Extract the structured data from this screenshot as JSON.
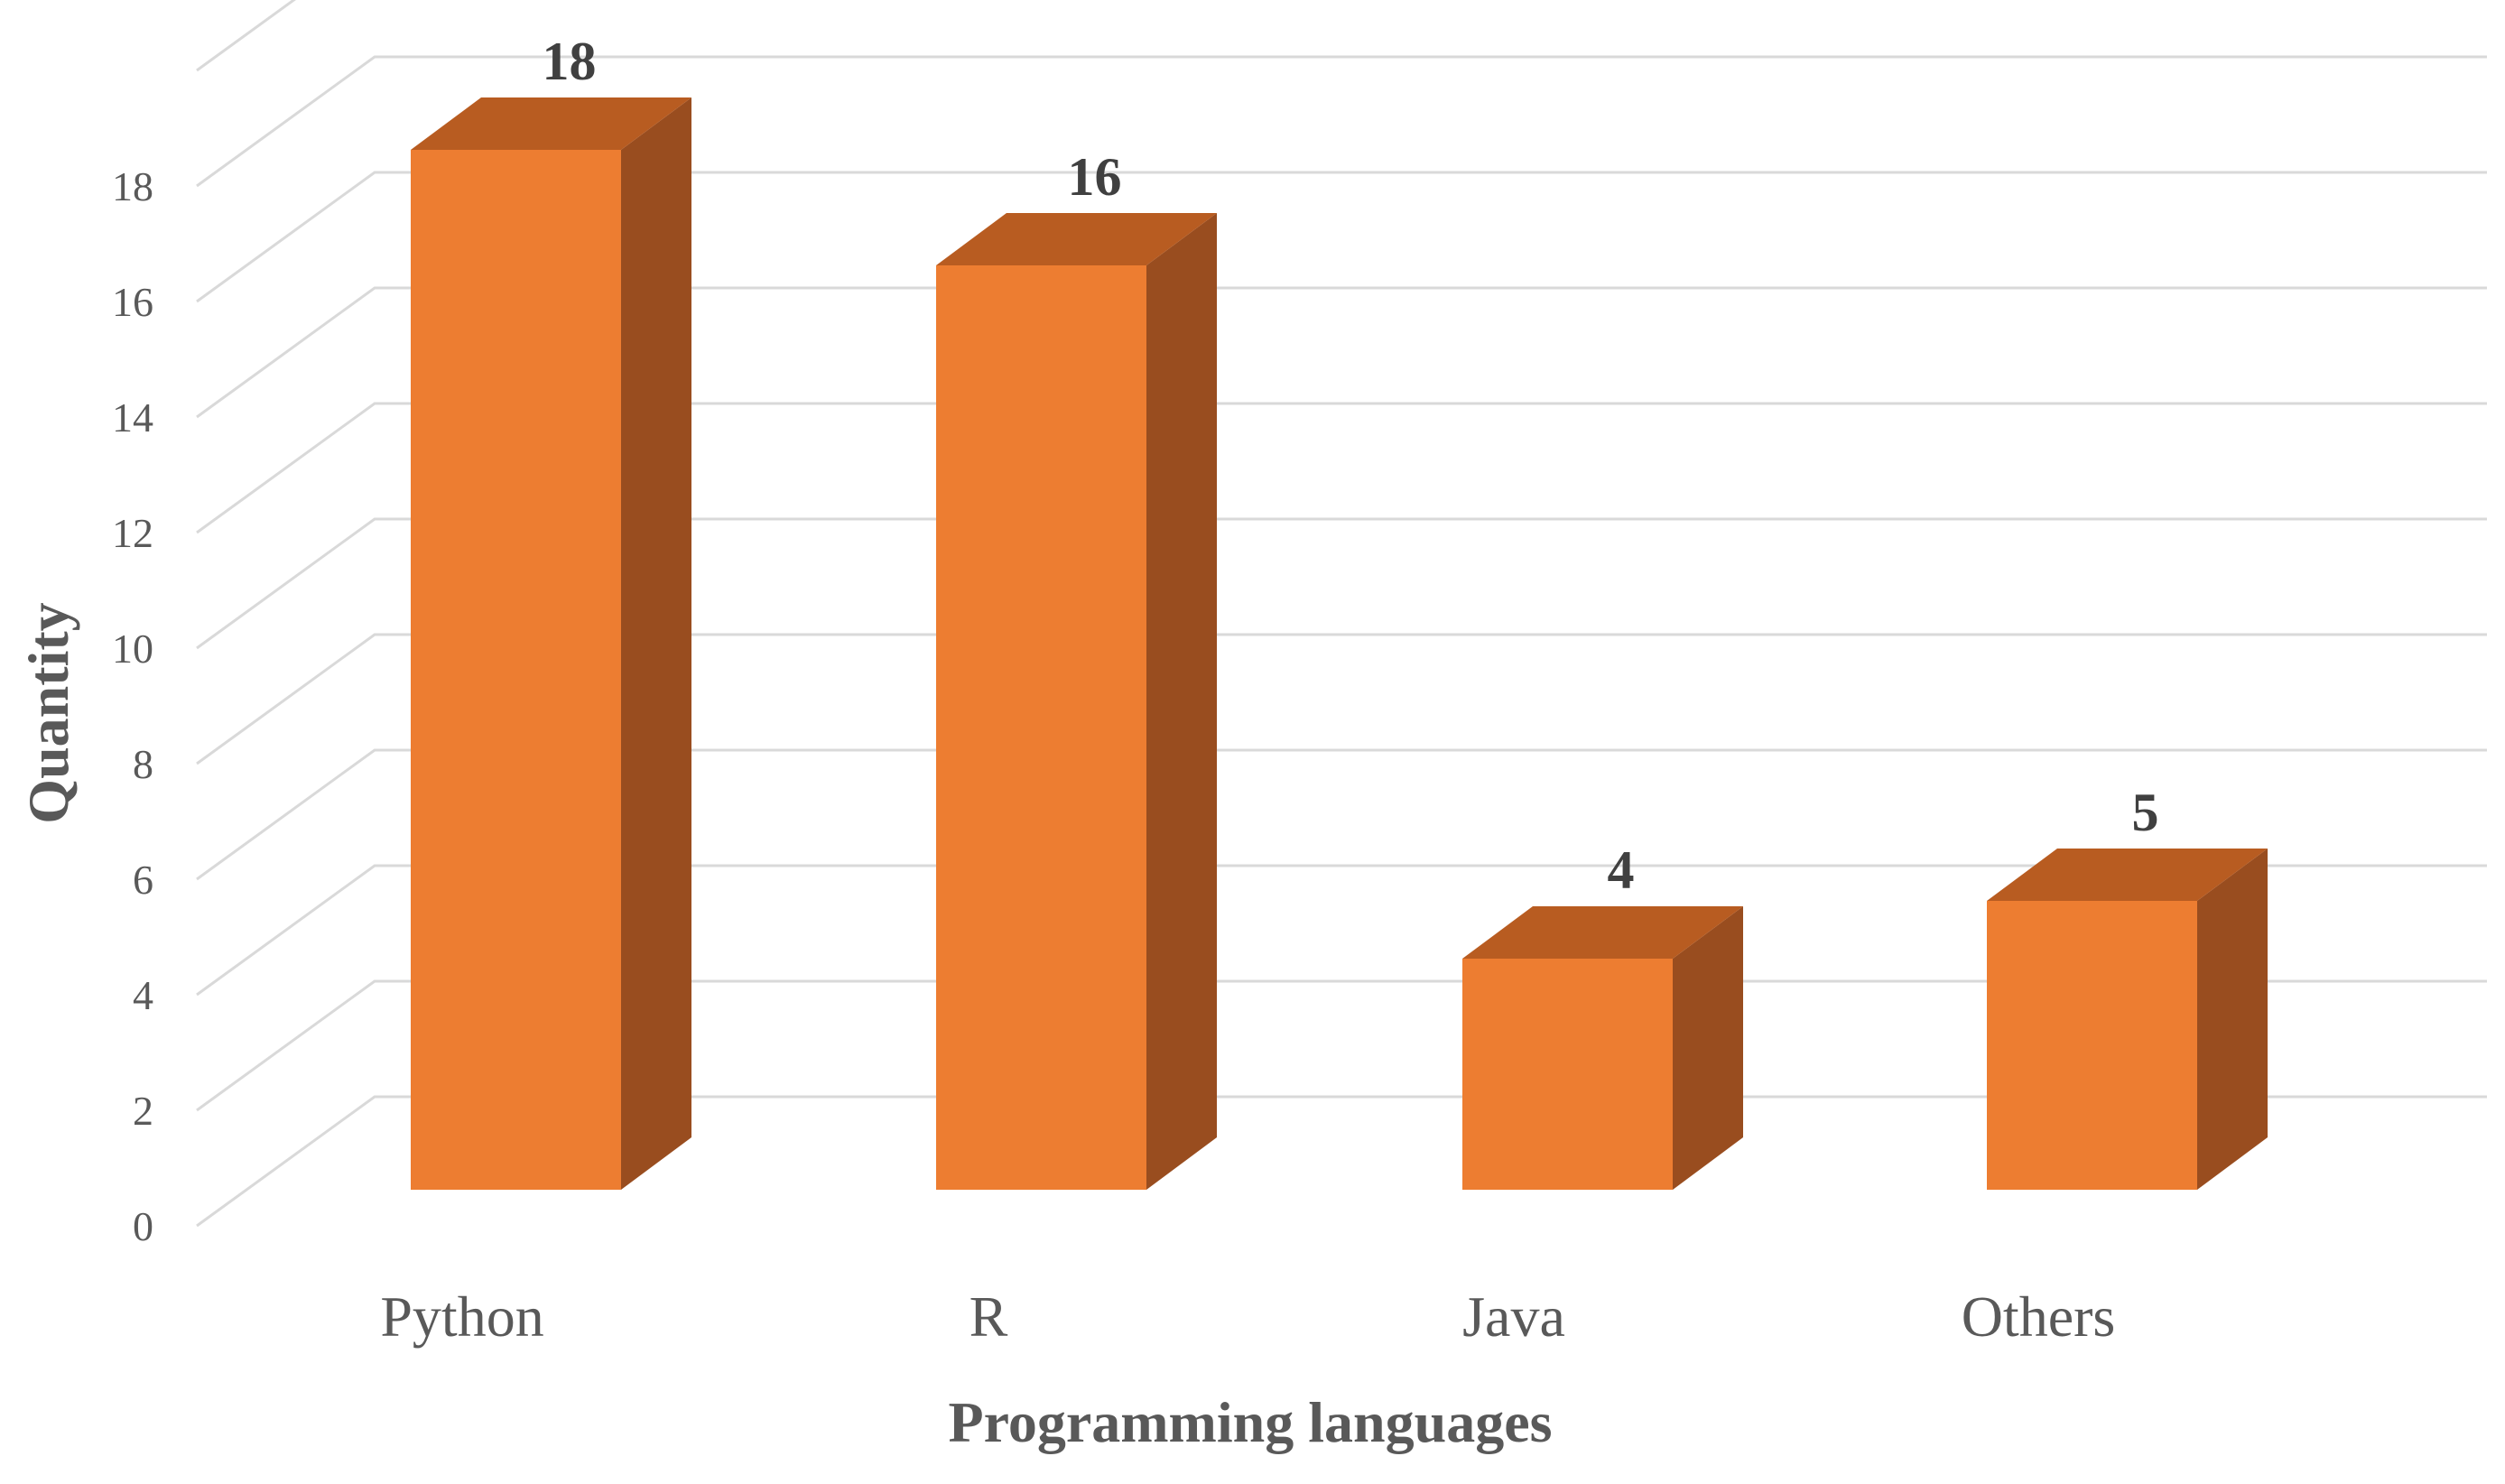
{
  "chart_data": {
    "type": "bar",
    "style": "3d-column",
    "categories": [
      "Python",
      "R",
      "Java",
      "Others"
    ],
    "values": [
      18,
      16,
      4,
      5
    ],
    "data_labels": [
      "18",
      "16",
      "4",
      "5"
    ],
    "title": "",
    "xlabel": "Programming languages",
    "ylabel": "Quantity",
    "ylim": [
      0,
      18
    ],
    "yticks": [
      "0",
      "2",
      "4",
      "6",
      "8",
      "10",
      "12",
      "14",
      "16",
      "18"
    ],
    "grid": true,
    "legend": "none",
    "colors": {
      "bar_front": "#ED7D31",
      "bar_top": "#B85C21",
      "bar_side": "#994D1F",
      "grid": "#D9D9D9",
      "text": "#595959",
      "label": "#404040"
    }
  }
}
